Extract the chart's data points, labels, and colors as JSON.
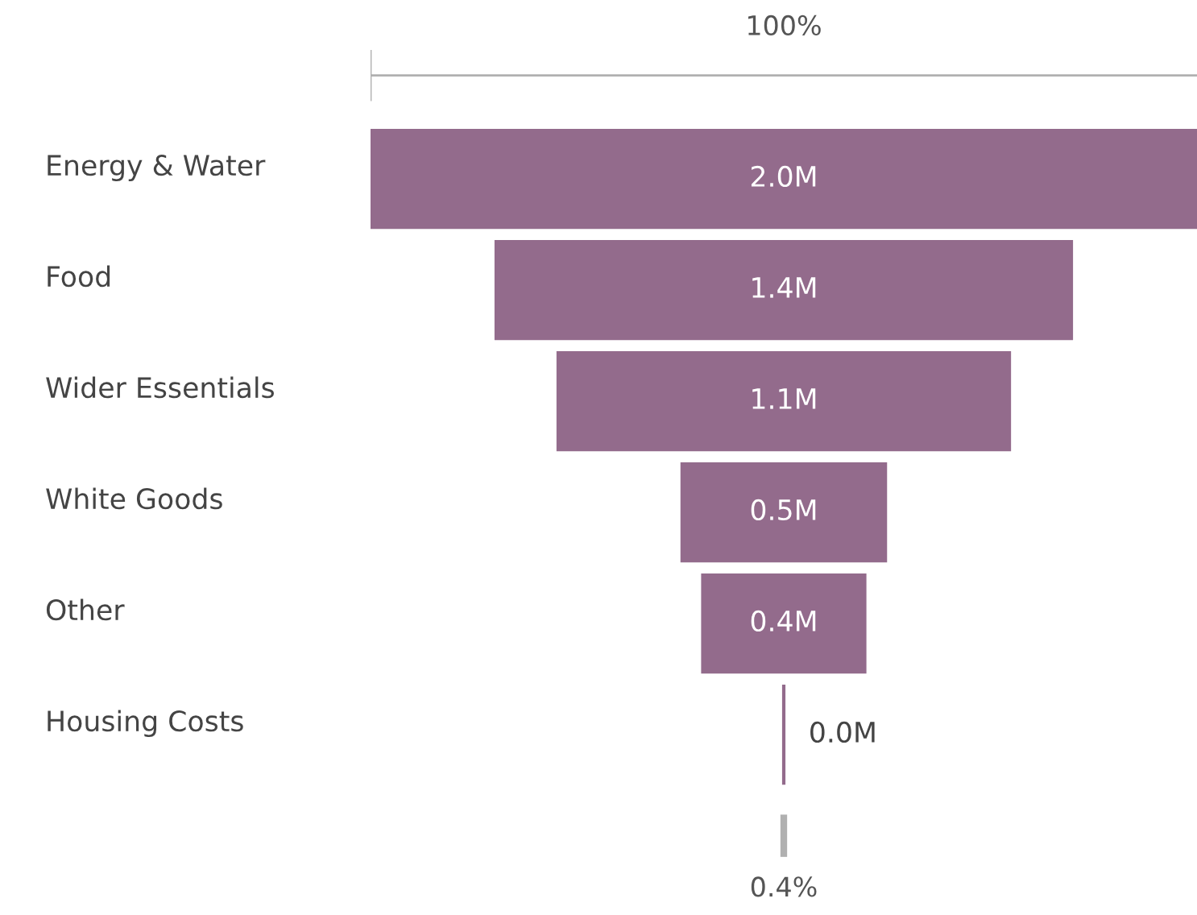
{
  "chart_data": {
    "type": "other",
    "categories": [
      "Energy & Water",
      "Food",
      "Wider Essentials",
      "White Goods",
      "Other",
      "Housing Costs"
    ],
    "values": [
      2.0,
      1.4,
      1.1,
      0.5,
      0.4,
      0.0
    ],
    "value_labels": [
      "2.0M",
      "1.4M",
      "1.1M",
      "0.5M",
      "0.4M",
      "0.0M"
    ],
    "color": "#936b8c",
    "annotations": [
      "100%",
      "0.4%"
    ]
  }
}
